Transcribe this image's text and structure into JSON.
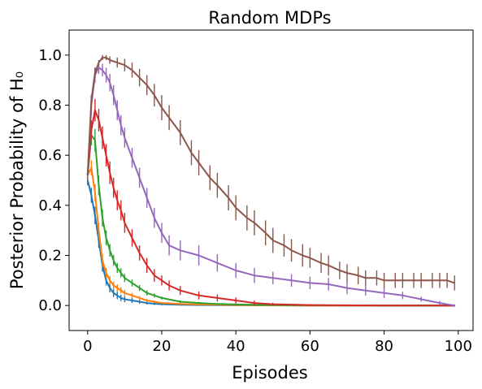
{
  "chart_data": {
    "type": "line",
    "title": "Random MDPs",
    "xlabel": "Episodes",
    "ylabel": "Posterior Probability of H₀",
    "xlim": [
      -5,
      104
    ],
    "ylim": [
      -0.1,
      1.1
    ],
    "xticks": [
      0,
      20,
      40,
      60,
      80,
      100
    ],
    "yticks": [
      0.0,
      0.2,
      0.4,
      0.6,
      0.8,
      1.0
    ],
    "xtick_labels": [
      "0",
      "20",
      "40",
      "60",
      "80",
      "100"
    ],
    "ytick_labels": [
      "0.0",
      "0.2",
      "0.4",
      "0.6",
      "0.8",
      "1.0"
    ],
    "grid": false,
    "legend": "none",
    "error_bars": true,
    "series": [
      {
        "color": "#1f77b4",
        "x": [
          0,
          1,
          2,
          3,
          4,
          5,
          6,
          7,
          8,
          9,
          10,
          12,
          14,
          16,
          18,
          20,
          25,
          30,
          40,
          60,
          80,
          99
        ],
        "y": [
          0.5,
          0.44,
          0.36,
          0.26,
          0.16,
          0.1,
          0.07,
          0.05,
          0.04,
          0.03,
          0.025,
          0.02,
          0.015,
          0.01,
          0.007,
          0.005,
          0.003,
          0.002,
          0.001,
          0.0,
          0.0,
          0.0
        ],
        "err": [
          0.02,
          0.03,
          0.035,
          0.03,
          0.025,
          0.02,
          0.018,
          0.016,
          0.015,
          0.013,
          0.012,
          0.01,
          0.008,
          0.006,
          0.005,
          0.004,
          0.003,
          0.002,
          0.001,
          0.0,
          0.0,
          0.0
        ]
      },
      {
        "color": "#ff7f0e",
        "x": [
          0,
          1,
          2,
          3,
          4,
          5,
          6,
          7,
          8,
          9,
          10,
          12,
          14,
          16,
          18,
          20,
          25,
          30,
          40,
          60,
          80,
          99
        ],
        "y": [
          0.52,
          0.55,
          0.45,
          0.3,
          0.18,
          0.13,
          0.1,
          0.08,
          0.07,
          0.06,
          0.05,
          0.04,
          0.03,
          0.02,
          0.015,
          0.01,
          0.006,
          0.004,
          0.002,
          0.0,
          0.0,
          0.0
        ],
        "err": [
          0.02,
          0.03,
          0.035,
          0.03,
          0.025,
          0.02,
          0.018,
          0.016,
          0.015,
          0.013,
          0.012,
          0.01,
          0.008,
          0.006,
          0.005,
          0.004,
          0.003,
          0.002,
          0.001,
          0.0,
          0.0,
          0.0
        ]
      },
      {
        "color": "#2ca02c",
        "x": [
          0,
          1,
          2,
          3,
          4,
          5,
          6,
          7,
          8,
          9,
          10,
          12,
          14,
          16,
          18,
          20,
          25,
          30,
          35,
          40,
          50,
          60,
          80,
          99
        ],
        "y": [
          0.52,
          0.68,
          0.66,
          0.48,
          0.35,
          0.27,
          0.22,
          0.18,
          0.15,
          0.13,
          0.11,
          0.09,
          0.07,
          0.05,
          0.04,
          0.03,
          0.015,
          0.01,
          0.006,
          0.004,
          0.002,
          0.001,
          0.0,
          0.0
        ],
        "err": [
          0.02,
          0.04,
          0.045,
          0.04,
          0.035,
          0.03,
          0.025,
          0.022,
          0.02,
          0.018,
          0.016,
          0.014,
          0.012,
          0.01,
          0.008,
          0.006,
          0.005,
          0.004,
          0.003,
          0.002,
          0.001,
          0.001,
          0.0,
          0.0
        ]
      },
      {
        "color": "#d62728",
        "x": [
          0,
          1,
          2,
          3,
          4,
          5,
          6,
          7,
          8,
          9,
          10,
          12,
          14,
          16,
          18,
          20,
          22,
          25,
          30,
          35,
          40,
          45,
          50,
          60,
          80,
          99
        ],
        "y": [
          0.52,
          0.7,
          0.78,
          0.74,
          0.67,
          0.6,
          0.53,
          0.47,
          0.42,
          0.38,
          0.33,
          0.27,
          0.21,
          0.16,
          0.12,
          0.1,
          0.08,
          0.06,
          0.04,
          0.03,
          0.02,
          0.01,
          0.005,
          0.002,
          0.0,
          0.0
        ],
        "err": [
          0.02,
          0.04,
          0.045,
          0.045,
          0.045,
          0.045,
          0.045,
          0.04,
          0.04,
          0.04,
          0.04,
          0.035,
          0.03,
          0.03,
          0.025,
          0.02,
          0.02,
          0.018,
          0.016,
          0.014,
          0.012,
          0.01,
          0.006,
          0.003,
          0.0,
          0.0
        ]
      },
      {
        "color": "#9467bd",
        "x": [
          0,
          1,
          2,
          3,
          4,
          5,
          6,
          7,
          8,
          9,
          10,
          12,
          14,
          16,
          18,
          20,
          22,
          25,
          30,
          35,
          40,
          45,
          50,
          55,
          60,
          65,
          70,
          75,
          80,
          85,
          90,
          95,
          99
        ],
        "y": [
          0.52,
          0.8,
          0.92,
          0.95,
          0.94,
          0.92,
          0.89,
          0.84,
          0.78,
          0.72,
          0.67,
          0.59,
          0.51,
          0.43,
          0.35,
          0.29,
          0.24,
          0.22,
          0.2,
          0.17,
          0.14,
          0.12,
          0.11,
          0.1,
          0.09,
          0.085,
          0.07,
          0.06,
          0.05,
          0.04,
          0.025,
          0.01,
          0.0
        ],
        "err": [
          0.02,
          0.04,
          0.03,
          0.025,
          0.025,
          0.03,
          0.035,
          0.04,
          0.04,
          0.04,
          0.04,
          0.04,
          0.04,
          0.04,
          0.04,
          0.04,
          0.04,
          0.04,
          0.04,
          0.035,
          0.03,
          0.03,
          0.025,
          0.025,
          0.025,
          0.025,
          0.025,
          0.02,
          0.02,
          0.015,
          0.01,
          0.008,
          0.005
        ]
      },
      {
        "color": "#8c564b",
        "x": [
          0,
          1,
          2,
          3,
          4,
          5,
          6,
          8,
          10,
          12,
          14,
          16,
          18,
          20,
          22,
          25,
          28,
          30,
          33,
          35,
          38,
          40,
          43,
          45,
          48,
          50,
          53,
          55,
          58,
          60,
          63,
          65,
          68,
          70,
          73,
          75,
          78,
          80,
          83,
          85,
          88,
          90,
          93,
          95,
          97,
          99
        ],
        "y": [
          0.52,
          0.82,
          0.93,
          0.97,
          0.99,
          0.99,
          0.98,
          0.97,
          0.96,
          0.94,
          0.91,
          0.88,
          0.84,
          0.79,
          0.75,
          0.69,
          0.61,
          0.57,
          0.51,
          0.48,
          0.43,
          0.39,
          0.35,
          0.33,
          0.29,
          0.26,
          0.24,
          0.22,
          0.2,
          0.19,
          0.17,
          0.16,
          0.14,
          0.13,
          0.12,
          0.11,
          0.11,
          0.1,
          0.1,
          0.1,
          0.1,
          0.1,
          0.1,
          0.1,
          0.1,
          0.09
        ],
        "err": [
          0.02,
          0.02,
          0.02,
          0.01,
          0.01,
          0.01,
          0.015,
          0.02,
          0.025,
          0.03,
          0.035,
          0.04,
          0.045,
          0.05,
          0.05,
          0.05,
          0.05,
          0.05,
          0.05,
          0.05,
          0.05,
          0.05,
          0.05,
          0.05,
          0.05,
          0.05,
          0.045,
          0.045,
          0.045,
          0.04,
          0.04,
          0.04,
          0.035,
          0.035,
          0.035,
          0.03,
          0.03,
          0.03,
          0.03,
          0.03,
          0.03,
          0.03,
          0.03,
          0.03,
          0.03,
          0.03
        ]
      }
    ]
  }
}
